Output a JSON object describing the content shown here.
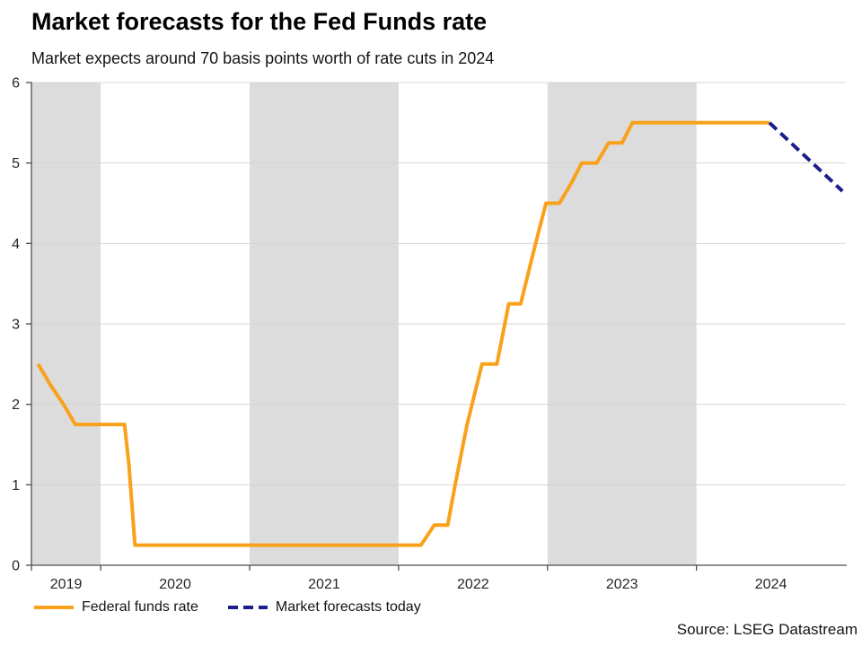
{
  "title": "Market forecasts for the Fed Funds rate",
  "subtitle": "Market expects around 70 basis points worth of rate cuts in 2024",
  "source": "Source: LSEG Datastream",
  "legend": {
    "items": [
      {
        "label": "Federal funds rate"
      },
      {
        "label": "Market forecasts today"
      }
    ]
  },
  "chart_data": {
    "type": "line",
    "title": "Market forecasts for the Fed Funds rate",
    "subtitle": "Market expects around 70 basis points worth of rate cuts in 2024",
    "xlabel": "",
    "ylabel": "",
    "x_unit": "year",
    "ylim": [
      0,
      6
    ],
    "yticks": [
      0,
      1,
      2,
      3,
      4,
      5,
      6
    ],
    "xlim": [
      2019.535,
      2025.0
    ],
    "x_axis_ticks": [
      2019.535,
      2020,
      2021,
      2022,
      2023,
      2024
    ],
    "x_labels": [
      {
        "text": "2019",
        "t": 2019.7675
      },
      {
        "text": "2020",
        "t": 2020.5
      },
      {
        "text": "2021",
        "t": 2021.5
      },
      {
        "text": "2022",
        "t": 2022.5
      },
      {
        "text": "2023",
        "t": 2023.5
      },
      {
        "text": "2024",
        "t": 2024.5
      }
    ],
    "shaded_year_bands": [
      [
        2019.535,
        2020
      ],
      [
        2021,
        2022
      ],
      [
        2023,
        2024
      ]
    ],
    "grid": true,
    "legend_position": "bottom-left",
    "band_color": "#DCDCDC",
    "grid_color": "#D4D4D4",
    "axis_color": "#4D4D4D",
    "series": [
      {
        "name": "Federal funds rate",
        "color": "#F9A11B",
        "line_style": "solid",
        "points": [
          [
            2019.58,
            2.5
          ],
          [
            2019.66,
            2.25
          ],
          [
            2019.75,
            2.0
          ],
          [
            2019.83,
            1.75
          ],
          [
            2020.16,
            1.75
          ],
          [
            2020.19,
            1.25
          ],
          [
            2020.23,
            0.25
          ],
          [
            2022.15,
            0.25
          ],
          [
            2022.24,
            0.5
          ],
          [
            2022.33,
            0.5
          ],
          [
            2022.38,
            1.0
          ],
          [
            2022.46,
            1.75
          ],
          [
            2022.56,
            2.5
          ],
          [
            2022.66,
            2.5
          ],
          [
            2022.74,
            3.25
          ],
          [
            2022.82,
            3.25
          ],
          [
            2022.92,
            4.0
          ],
          [
            2022.99,
            4.5
          ],
          [
            2023.08,
            4.5
          ],
          [
            2023.16,
            4.75
          ],
          [
            2023.23,
            5.0
          ],
          [
            2023.33,
            5.0
          ],
          [
            2023.41,
            5.25
          ],
          [
            2023.5,
            5.25
          ],
          [
            2023.57,
            5.5
          ],
          [
            2024.49,
            5.5
          ]
        ]
      },
      {
        "name": "Market forecasts today",
        "color": "#1A1D8A",
        "line_style": "dashed",
        "points": [
          [
            2024.49,
            5.5
          ],
          [
            2024.98,
            4.65
          ]
        ]
      }
    ]
  }
}
